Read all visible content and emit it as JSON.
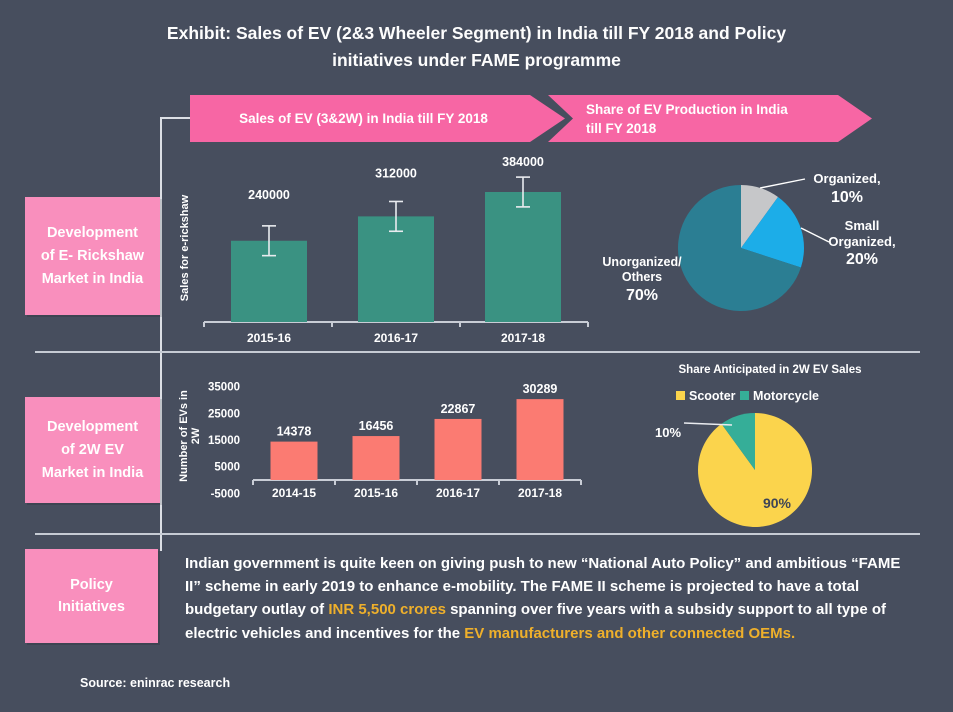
{
  "page": {
    "title": "Exhibit: Sales of EV (2&3 Wheeler Segment) in India till FY 2018 and Policy\ninitiatives under FAME programme"
  },
  "banners": {
    "banner1": "Sales of EV (3&2W) in India till FY 2018",
    "banner2": "Share of EV Production in India\ntill FY 2018"
  },
  "side_labels": {
    "section1": "Development\nof E- Rickshaw\nMarket in India",
    "section2": "Development\nof 2W EV\nMarket in India",
    "section3": "Policy\nInitiatives"
  },
  "policy": {
    "segments": [
      {
        "text": "Indian government is quite keen on giving push to new “National Auto Policy” and ambitious “FAME II” scheme in early 2019 to enhance e-mobility. The FAME II scheme is projected to have a total budgetary outlay of ",
        "highlight": false
      },
      {
        "text": "INR 5,500 crores",
        "highlight": true
      },
      {
        "text": " spanning over five years with a subsidy support to all type of electric vehicles and incentives for the ",
        "highlight": false
      },
      {
        "text": "EV manufacturers and other connected OEMs.",
        "highlight": true
      }
    ]
  },
  "source": "Source: eninrac research",
  "colors": {
    "background": "#474e5e",
    "banner_pink": "#f766a4",
    "box_pink": "#f98fbd",
    "bar_teal": "#3a9282",
    "bar_salmon": "#fb7b72",
    "pie_unorganized_teal": "#2b7e93",
    "pie_small_organized_blue": "#1cade8",
    "pie_organized_gray": "#c6c7c9",
    "pie_scooter_yellow": "#fbd44c",
    "pie_motorcycle_teal": "#35ae98",
    "highlight_yellow": "#efb02b",
    "axis_gray": "#c9cdd6",
    "error_bar": "#e9ebef",
    "text_white": "#ffffff",
    "dark_label": "#3d4456"
  },
  "chart_data": [
    {
      "id": "erickshaw_sales",
      "type": "bar",
      "title": "Sales of EV (3&2W) in India till FY 2018",
      "ylabel": "Sales for e-rickshaw",
      "categories": [
        "2015-16",
        "2016-17",
        "2017-18"
      ],
      "values": [
        240000,
        312000,
        384000
      ],
      "data_labels": [
        "240000",
        "312000",
        "384000"
      ],
      "bar_color": "#3a9282",
      "error_bars": true,
      "error_value": 44000,
      "ylim": [
        0,
        400000
      ],
      "grid": false,
      "legend": null
    },
    {
      "id": "ev_production_share",
      "type": "pie",
      "title": "Share of EV Production in India till FY 2018",
      "slices": [
        {
          "label": "Organized",
          "value": 10,
          "color": "#c6c7c9",
          "label_lines": [
            "Organized,",
            "10%"
          ]
        },
        {
          "label": "Small Organized",
          "value": 20,
          "color": "#1cade8",
          "label_lines": [
            "Small",
            "Organized,",
            "20%"
          ]
        },
        {
          "label": "Unorganized/Others",
          "value": 70,
          "color": "#2b7e93",
          "label_lines": [
            "Unorganized/",
            "Others",
            "70%"
          ]
        }
      ],
      "start_angle_deg": 0,
      "direction": "clockwise",
      "legend": null
    },
    {
      "id": "ev_2w_sales",
      "type": "bar",
      "title": "",
      "ylabel": "Number of EVs in\n2W",
      "categories": [
        "2014-15",
        "2015-16",
        "2016-17",
        "2017-18"
      ],
      "values": [
        14378,
        16456,
        22867,
        30289
      ],
      "data_labels": [
        "14378",
        "16456",
        "22867",
        "30289"
      ],
      "bar_color": "#fb7b72",
      "error_bars": false,
      "yticks": [
        -5000,
        5000,
        15000,
        25000,
        35000
      ],
      "ylim": [
        -5000,
        35000
      ],
      "grid": false,
      "legend": null
    },
    {
      "id": "anticipated_2w_share",
      "type": "pie",
      "title": "Share Anticipated in 2W EV Sales",
      "legend": [
        "Scooter",
        "Motorcycle"
      ],
      "legend_position": "top",
      "slices": [
        {
          "label": "Scooter",
          "value": 90,
          "color": "#fbd44c",
          "callout": "90%"
        },
        {
          "label": "Motorcycle",
          "value": 10,
          "color": "#35ae98",
          "callout": "10%"
        }
      ],
      "start_angle_deg": 0,
      "direction": "clockwise"
    }
  ]
}
